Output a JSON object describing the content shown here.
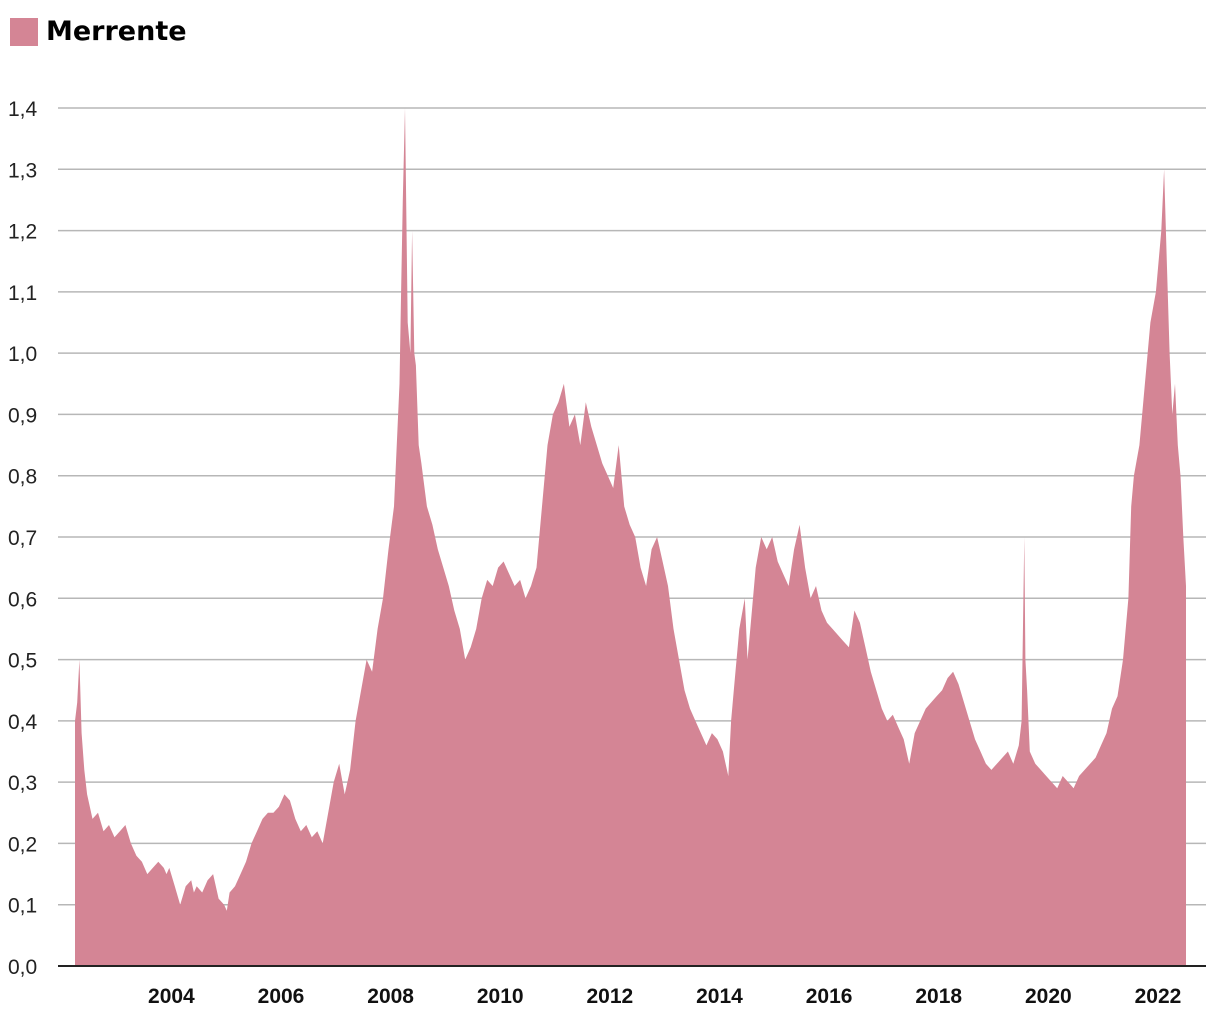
{
  "chart_data": {
    "type": "area",
    "title": "",
    "xlabel": "",
    "ylabel": "",
    "legend": [
      {
        "name": "Merrente",
        "color": "#d48595"
      }
    ],
    "xlim": [
      2002.8,
      2023.3
    ],
    "ylim": [
      0,
      1.4
    ],
    "y_ticks": [
      {
        "value": 0.0,
        "label": "0,0"
      },
      {
        "value": 0.1,
        "label": "0,1"
      },
      {
        "value": 0.2,
        "label": "0,2"
      },
      {
        "value": 0.3,
        "label": "0,3"
      },
      {
        "value": 0.4,
        "label": "0,4"
      },
      {
        "value": 0.5,
        "label": "0,5"
      },
      {
        "value": 0.6,
        "label": "0,6"
      },
      {
        "value": 0.7,
        "label": "0,7"
      },
      {
        "value": 0.8,
        "label": "0,8"
      },
      {
        "value": 0.9,
        "label": "0,9"
      },
      {
        "value": 1.0,
        "label": "1,0"
      },
      {
        "value": 1.1,
        "label": "1,1"
      },
      {
        "value": 1.2,
        "label": "1,2"
      },
      {
        "value": 1.3,
        "label": "1,3"
      },
      {
        "value": 1.4,
        "label": "1,4"
      }
    ],
    "x_ticks": [
      {
        "value": 2004,
        "label": "2004"
      },
      {
        "value": 2006,
        "label": "2006"
      },
      {
        "value": 2008,
        "label": "2008"
      },
      {
        "value": 2010,
        "label": "2010"
      },
      {
        "value": 2012,
        "label": "2012"
      },
      {
        "value": 2014,
        "label": "2014"
      },
      {
        "value": 2016,
        "label": "2016"
      },
      {
        "value": 2018,
        "label": "2018"
      },
      {
        "value": 2020,
        "label": "2020"
      },
      {
        "value": 2022,
        "label": "2022"
      }
    ],
    "grid": true,
    "series": [
      {
        "name": "Merrente",
        "color": "#d48595",
        "x": [
          2002.88,
          2002.92,
          2002.96,
          2003.0,
          2003.05,
          2003.1,
          2003.2,
          2003.3,
          2003.4,
          2003.5,
          2003.6,
          2003.7,
          2003.8,
          2003.9,
          2004.0,
          2004.1,
          2004.2,
          2004.3,
          2004.4,
          2004.5,
          2004.55,
          2004.6,
          2004.7,
          2004.8,
          2004.9,
          2005.0,
          2005.05,
          2005.1,
          2005.2,
          2005.3,
          2005.4,
          2005.5,
          2005.6,
          2005.65,
          2005.7,
          2005.8,
          2005.9,
          2006.0,
          2006.1,
          2006.2,
          2006.3,
          2006.4,
          2006.5,
          2006.6,
          2006.7,
          2006.8,
          2006.9,
          2007.0,
          2007.1,
          2007.2,
          2007.3,
          2007.4,
          2007.5,
          2007.6,
          2007.7,
          2007.8,
          2007.9,
          2008.0,
          2008.1,
          2008.2,
          2008.3,
          2008.4,
          2008.5,
          2008.6,
          2008.7,
          2008.8,
          2008.83,
          2008.86,
          2008.9,
          2008.95,
          2009.0,
          2009.03,
          2009.07,
          2009.1,
          2009.15,
          2009.2,
          2009.3,
          2009.4,
          2009.5,
          2009.6,
          2009.7,
          2009.8,
          2009.9,
          2010.0,
          2010.1,
          2010.2,
          2010.3,
          2010.4,
          2010.5,
          2010.6,
          2010.7,
          2010.8,
          2010.9,
          2011.0,
          2011.1,
          2011.2,
          2011.3,
          2011.4,
          2011.5,
          2011.6,
          2011.7,
          2011.8,
          2011.9,
          2012.0,
          2012.1,
          2012.2,
          2012.3,
          2012.4,
          2012.5,
          2012.6,
          2012.7,
          2012.8,
          2012.9,
          2013.0,
          2013.1,
          2013.2,
          2013.3,
          2013.4,
          2013.5,
          2013.6,
          2013.7,
          2013.8,
          2013.9,
          2014.0,
          2014.1,
          2014.2,
          2014.3,
          2014.4,
          2014.5,
          2014.6,
          2014.7,
          2014.8,
          2014.85,
          2014.9,
          2015.0,
          2015.1,
          2015.15,
          2015.2,
          2015.3,
          2015.4,
          2015.5,
          2015.6,
          2015.7,
          2015.8,
          2015.9,
          2016.0,
          2016.1,
          2016.2,
          2016.3,
          2016.4,
          2016.5,
          2016.6,
          2016.7,
          2016.8,
          2016.9,
          2017.0,
          2017.1,
          2017.2,
          2017.3,
          2017.4,
          2017.5,
          2017.6,
          2017.7,
          2017.8,
          2017.9,
          2018.0,
          2018.1,
          2018.2,
          2018.3,
          2018.4,
          2018.5,
          2018.6,
          2018.7,
          2018.8,
          2018.9,
          2019.0,
          2019.1,
          2019.2,
          2019.3,
          2019.4,
          2019.5,
          2019.6,
          2019.7,
          2019.8,
          2019.9,
          2020.0,
          2020.1,
          2020.15,
          2020.2,
          2020.22,
          2020.25,
          2020.3,
          2020.4,
          2020.5,
          2020.6,
          2020.7,
          2020.8,
          2020.9,
          2021.0,
          2021.1,
          2021.2,
          2021.3,
          2021.4,
          2021.5,
          2021.6,
          2021.7,
          2021.8,
          2021.9,
          2022.0,
          2022.1,
          2022.15,
          2022.2,
          2022.3,
          2022.4,
          2022.5,
          2022.6,
          2022.7,
          2022.75,
          2022.8,
          2022.85,
          2022.9,
          2022.95,
          2023.0,
          2023.05,
          2023.1,
          2023.15
        ],
        "y": [
          0.4,
          0.43,
          0.5,
          0.38,
          0.32,
          0.28,
          0.24,
          0.25,
          0.22,
          0.23,
          0.21,
          0.22,
          0.23,
          0.2,
          0.18,
          0.17,
          0.15,
          0.16,
          0.17,
          0.16,
          0.15,
          0.16,
          0.13,
          0.1,
          0.13,
          0.14,
          0.12,
          0.13,
          0.12,
          0.14,
          0.15,
          0.11,
          0.1,
          0.09,
          0.12,
          0.13,
          0.15,
          0.17,
          0.2,
          0.22,
          0.24,
          0.25,
          0.25,
          0.26,
          0.28,
          0.27,
          0.24,
          0.22,
          0.23,
          0.21,
          0.22,
          0.2,
          0.25,
          0.3,
          0.33,
          0.28,
          0.32,
          0.4,
          0.45,
          0.5,
          0.48,
          0.55,
          0.6,
          0.68,
          0.75,
          0.95,
          1.1,
          1.25,
          1.4,
          1.05,
          1.0,
          1.2,
          1.0,
          0.98,
          0.85,
          0.82,
          0.75,
          0.72,
          0.68,
          0.65,
          0.62,
          0.58,
          0.55,
          0.5,
          0.52,
          0.55,
          0.6,
          0.63,
          0.62,
          0.65,
          0.66,
          0.64,
          0.62,
          0.63,
          0.6,
          0.62,
          0.65,
          0.75,
          0.85,
          0.9,
          0.92,
          0.95,
          0.88,
          0.9,
          0.85,
          0.92,
          0.88,
          0.85,
          0.82,
          0.8,
          0.78,
          0.85,
          0.75,
          0.72,
          0.7,
          0.65,
          0.62,
          0.68,
          0.7,
          0.66,
          0.62,
          0.55,
          0.5,
          0.45,
          0.42,
          0.4,
          0.38,
          0.36,
          0.38,
          0.37,
          0.35,
          0.31,
          0.4,
          0.45,
          0.55,
          0.6,
          0.5,
          0.55,
          0.65,
          0.7,
          0.68,
          0.7,
          0.66,
          0.64,
          0.62,
          0.68,
          0.72,
          0.65,
          0.6,
          0.62,
          0.58,
          0.56,
          0.55,
          0.54,
          0.53,
          0.52,
          0.58,
          0.56,
          0.52,
          0.48,
          0.45,
          0.42,
          0.4,
          0.41,
          0.39,
          0.37,
          0.33,
          0.38,
          0.4,
          0.42,
          0.43,
          0.44,
          0.45,
          0.47,
          0.48,
          0.46,
          0.43,
          0.4,
          0.37,
          0.35,
          0.33,
          0.32,
          0.33,
          0.34,
          0.35,
          0.33,
          0.36,
          0.4,
          0.7,
          0.5,
          0.45,
          0.35,
          0.33,
          0.32,
          0.31,
          0.3,
          0.29,
          0.31,
          0.3,
          0.29,
          0.31,
          0.32,
          0.33,
          0.34,
          0.36,
          0.38,
          0.42,
          0.44,
          0.5,
          0.6,
          0.75,
          0.8,
          0.85,
          0.95,
          1.05,
          1.1,
          1.2,
          1.3,
          1.15,
          1.0,
          0.9,
          0.95,
          0.85,
          0.8,
          0.7,
          0.62
        ]
      }
    ]
  }
}
